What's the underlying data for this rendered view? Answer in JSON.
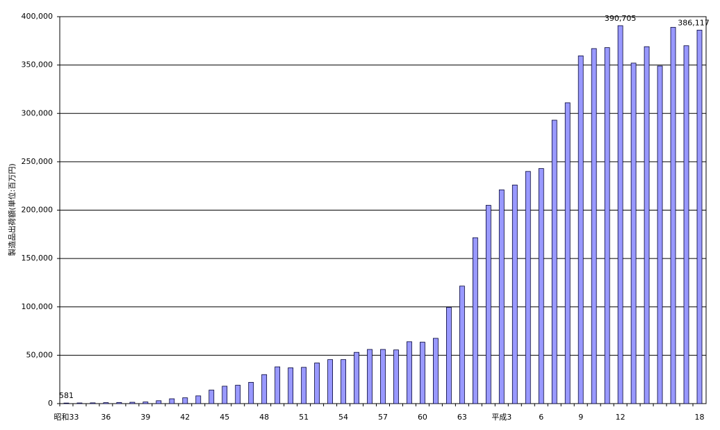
{
  "chart_data": {
    "type": "bar",
    "y_label": "製造品出荷額(単位:百万円)",
    "categories": [
      "昭和33",
      null,
      null,
      "36",
      null,
      null,
      "39",
      null,
      null,
      "42",
      null,
      null,
      "45",
      null,
      null,
      "48",
      null,
      null,
      "51",
      null,
      null,
      "54",
      null,
      null,
      "57",
      null,
      null,
      "60",
      null,
      null,
      "63",
      null,
      null,
      "平成3",
      null,
      null,
      "6",
      null,
      null,
      "9",
      null,
      null,
      "12",
      null,
      null,
      null,
      null,
      null,
      "18"
    ],
    "values": [
      581,
      700,
      800,
      1000,
      1200,
      1400,
      1700,
      3000,
      5000,
      6000,
      8000,
      14000,
      18000,
      19000,
      22000,
      30000,
      38000,
      37000,
      37500,
      42000,
      45500,
      45500,
      53000,
      56000,
      56000,
      55500,
      64000,
      63500,
      67500,
      99500,
      121500,
      171500,
      205000,
      221000,
      226000,
      240000,
      243000,
      293000,
      311000,
      359500,
      367000,
      368000,
      390705,
      352000,
      369000,
      349000,
      389000,
      370000,
      386117
    ],
    "value_labels": [
      "581",
      null,
      null,
      null,
      null,
      null,
      null,
      null,
      null,
      null,
      null,
      null,
      null,
      null,
      null,
      null,
      null,
      null,
      null,
      null,
      null,
      null,
      null,
      null,
      null,
      null,
      null,
      null,
      null,
      null,
      null,
      null,
      null,
      null,
      null,
      null,
      null,
      null,
      null,
      null,
      null,
      null,
      "390,705",
      null,
      null,
      null,
      null,
      null,
      "386,117"
    ],
    "color": "#9999ff",
    "ylim": [
      0,
      400000
    ],
    "yticks": [
      0,
      {
        "value": 50000,
        "label": "50,000"
      },
      {
        "value": 100000,
        "label": "100,000"
      },
      {
        "value": 150000,
        "label": "150,000"
      },
      {
        "value": 200000,
        "label": "200,000"
      },
      {
        "value": 250000,
        "label": "250,000"
      },
      {
        "value": 300000,
        "label": "300,000"
      },
      {
        "value": 350000,
        "label": "350,000"
      },
      {
        "value": 400000,
        "label": "400,000"
      }
    ],
    "grid": true
  }
}
